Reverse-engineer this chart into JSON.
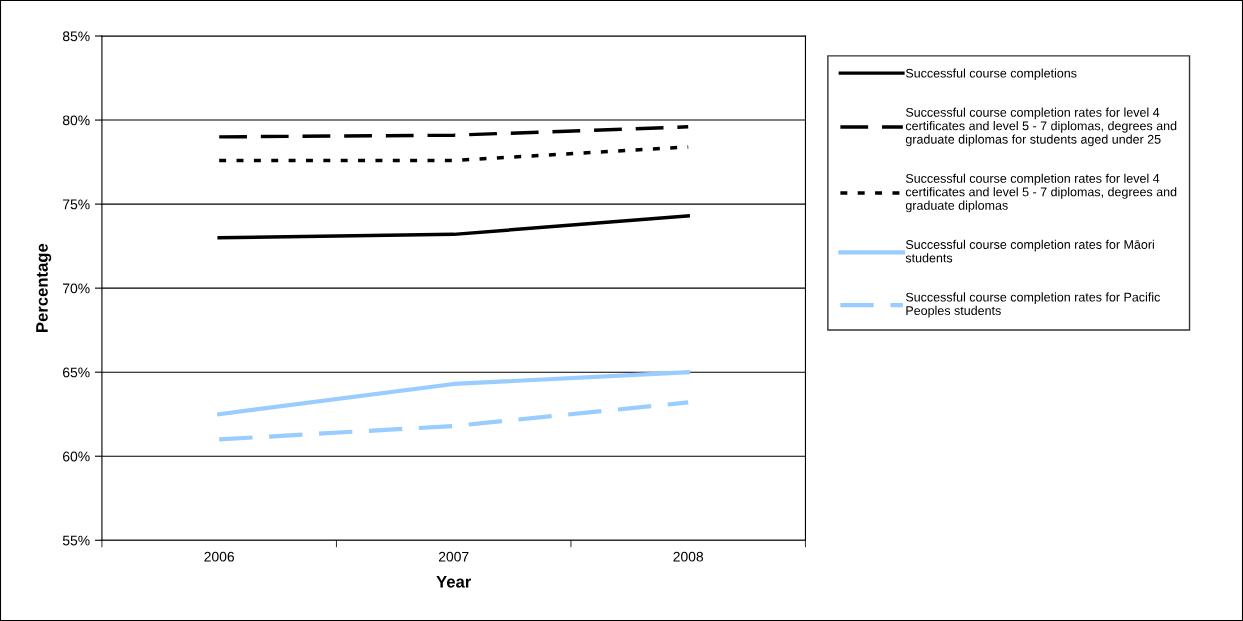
{
  "chart_data": {
    "type": "line",
    "xlabel": "Year",
    "ylabel": "Percentage",
    "categories": [
      "2006",
      "2007",
      "2008"
    ],
    "series": [
      {
        "name": "Successful course completions",
        "color": "#000000",
        "line_style": "solid",
        "values": [
          73.0,
          73.2,
          74.3
        ]
      },
      {
        "name": "Successful course completion rates for level 4 certificates and level 5 - 7 diplomas, degrees and graduate diplomas for students aged under 25",
        "color": "#000000",
        "line_style": "dashed",
        "values": [
          79.0,
          79.1,
          79.6
        ]
      },
      {
        "name": "Successful course completion rates for level 4 certificates and level 5 - 7 diplomas, degrees and graduate diplomas",
        "color": "#000000",
        "line_style": "dotted",
        "values": [
          77.6,
          77.6,
          78.4
        ]
      },
      {
        "name": "Successful course completion rates for Māori students",
        "color": "#99ccff",
        "line_style": "solid",
        "values": [
          62.5,
          64.3,
          65.0
        ]
      },
      {
        "name": "Successful course completion rates for Pacific Peoples students",
        "color": "#99ccff",
        "line_style": "dashed",
        "values": [
          61.0,
          61.8,
          63.2
        ]
      }
    ],
    "ylim": [
      55,
      85
    ],
    "yticks": [
      {
        "value": 55,
        "label": "55%"
      },
      {
        "value": 60,
        "label": "60%"
      },
      {
        "value": 65,
        "label": "65%"
      },
      {
        "value": 70,
        "label": "70%"
      },
      {
        "value": 75,
        "label": "75%"
      },
      {
        "value": 80,
        "label": "80%"
      },
      {
        "value": 85,
        "label": "85%"
      }
    ],
    "grid": "y",
    "legend": "right",
    "marker": "none"
  }
}
